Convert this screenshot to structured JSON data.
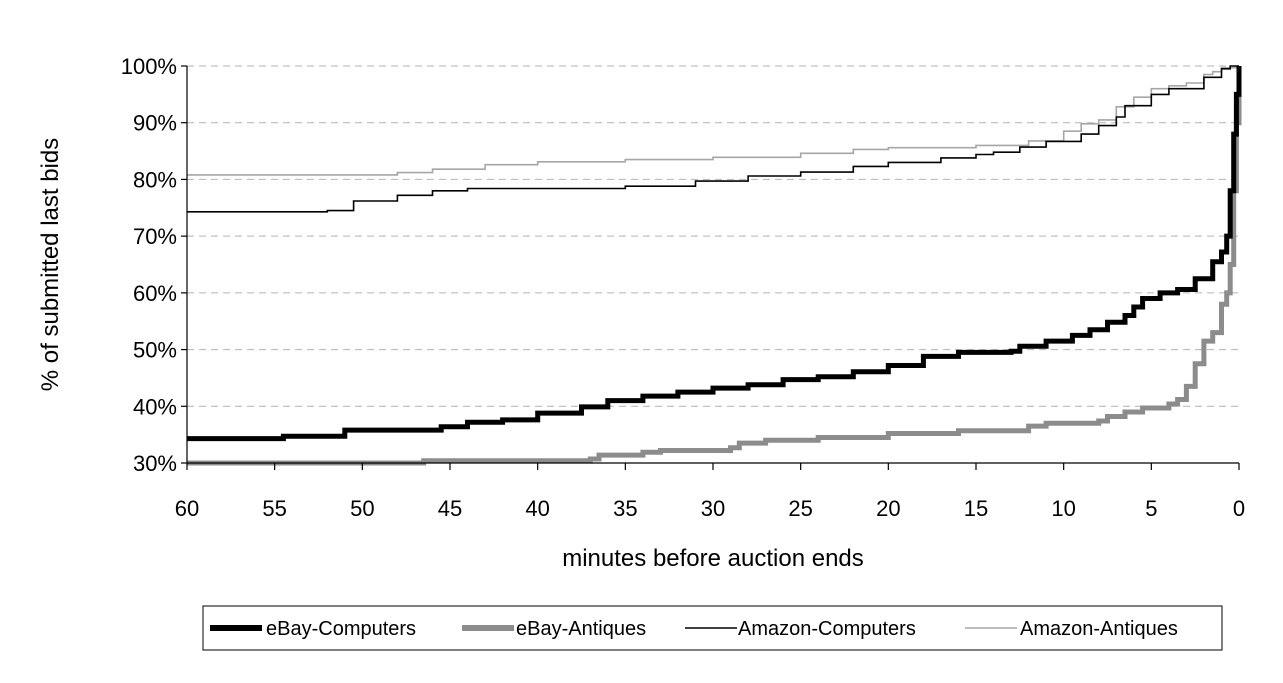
{
  "chart_data": {
    "type": "line",
    "xlabel": "minutes before auction ends",
    "ylabel": "% of submitted last bids",
    "xlim": [
      60,
      0
    ],
    "ylim": [
      0.3,
      1.0
    ],
    "x_ticks": [
      60,
      55,
      50,
      45,
      40,
      35,
      30,
      25,
      20,
      15,
      10,
      5,
      0
    ],
    "x_tick_labels": [
      "60",
      "55",
      "50",
      "45",
      "40",
      "35",
      "30",
      "25",
      "20",
      "15",
      "10",
      "5",
      "0"
    ],
    "y_ticks": [
      0.3,
      0.4,
      0.5,
      0.6,
      0.7,
      0.8,
      0.9,
      1.0
    ],
    "y_tick_labels": [
      "30%",
      "40%",
      "50%",
      "60%",
      "70%",
      "80%",
      "90%",
      "100%"
    ],
    "grid": "horizontal dashed",
    "legend_position": "bottom",
    "series": [
      {
        "name": "eBay-Computers",
        "color": "#000000",
        "style": "thick",
        "points": [
          [
            60,
            0.343
          ],
          [
            54.5,
            0.343
          ],
          [
            54.5,
            0.347
          ],
          [
            51,
            0.347
          ],
          [
            51,
            0.358
          ],
          [
            47,
            0.358
          ],
          [
            45.5,
            0.364
          ],
          [
            44,
            0.372
          ],
          [
            42,
            0.376
          ],
          [
            40,
            0.388
          ],
          [
            37.5,
            0.399
          ],
          [
            36,
            0.41
          ],
          [
            34,
            0.418
          ],
          [
            32,
            0.425
          ],
          [
            30,
            0.432
          ],
          [
            28,
            0.438
          ],
          [
            26,
            0.447
          ],
          [
            24,
            0.452
          ],
          [
            22,
            0.461
          ],
          [
            20,
            0.472
          ],
          [
            18,
            0.488
          ],
          [
            16,
            0.495
          ],
          [
            13,
            0.497
          ],
          [
            12.5,
            0.506
          ],
          [
            11,
            0.515
          ],
          [
            9.5,
            0.525
          ],
          [
            8.5,
            0.535
          ],
          [
            7.5,
            0.548
          ],
          [
            6.5,
            0.56
          ],
          [
            6,
            0.575
          ],
          [
            5.5,
            0.59
          ],
          [
            4.5,
            0.6
          ],
          [
            3.5,
            0.606
          ],
          [
            2.5,
            0.625
          ],
          [
            1.5,
            0.655
          ],
          [
            1,
            0.672
          ],
          [
            0.7,
            0.7
          ],
          [
            0.5,
            0.78
          ],
          [
            0.3,
            0.88
          ],
          [
            0.15,
            0.95
          ],
          [
            0,
            1.0
          ]
        ]
      },
      {
        "name": "eBay-Antiques",
        "color": "#8c8c8c",
        "style": "thick",
        "points": [
          [
            60,
            0.3
          ],
          [
            47,
            0.3
          ],
          [
            46.5,
            0.304
          ],
          [
            37,
            0.307
          ],
          [
            36.5,
            0.314
          ],
          [
            34,
            0.319
          ],
          [
            33,
            0.322
          ],
          [
            29,
            0.327
          ],
          [
            28.5,
            0.335
          ],
          [
            27,
            0.34
          ],
          [
            24,
            0.345
          ],
          [
            20,
            0.352
          ],
          [
            16,
            0.357
          ],
          [
            13,
            0.357
          ],
          [
            12,
            0.365
          ],
          [
            11,
            0.37
          ],
          [
            8,
            0.374
          ],
          [
            7.5,
            0.382
          ],
          [
            6.5,
            0.39
          ],
          [
            5.5,
            0.397
          ],
          [
            4,
            0.404
          ],
          [
            3.5,
            0.412
          ],
          [
            3,
            0.435
          ],
          [
            2.5,
            0.475
          ],
          [
            2,
            0.515
          ],
          [
            1.5,
            0.53
          ],
          [
            1,
            0.58
          ],
          [
            0.7,
            0.6
          ],
          [
            0.5,
            0.65
          ],
          [
            0.3,
            0.78
          ],
          [
            0.15,
            0.9
          ],
          [
            0,
            1.0
          ]
        ]
      },
      {
        "name": "Amazon-Computers",
        "color": "#000000",
        "style": "thin",
        "points": [
          [
            60,
            0.743
          ],
          [
            53,
            0.743
          ],
          [
            52,
            0.745
          ],
          [
            50.5,
            0.762
          ],
          [
            48,
            0.772
          ],
          [
            46,
            0.78
          ],
          [
            44,
            0.784
          ],
          [
            35,
            0.788
          ],
          [
            31,
            0.797
          ],
          [
            28,
            0.806
          ],
          [
            25,
            0.813
          ],
          [
            22,
            0.823
          ],
          [
            20,
            0.83
          ],
          [
            17,
            0.838
          ],
          [
            15,
            0.844
          ],
          [
            14,
            0.848
          ],
          [
            12.5,
            0.857
          ],
          [
            11,
            0.867
          ],
          [
            9,
            0.88
          ],
          [
            8,
            0.895
          ],
          [
            7,
            0.91
          ],
          [
            6.5,
            0.93
          ],
          [
            5,
            0.95
          ],
          [
            4,
            0.96
          ],
          [
            2,
            0.98
          ],
          [
            1,
            0.995
          ],
          [
            0.5,
            1.0
          ],
          [
            0,
            1.0
          ]
        ]
      },
      {
        "name": "Amazon-Antiques",
        "color": "#a6a6a6",
        "style": "thin",
        "points": [
          [
            60,
            0.808
          ],
          [
            49,
            0.808
          ],
          [
            48,
            0.812
          ],
          [
            46,
            0.818
          ],
          [
            43,
            0.826
          ],
          [
            40,
            0.831
          ],
          [
            35,
            0.835
          ],
          [
            30,
            0.839
          ],
          [
            25,
            0.846
          ],
          [
            22,
            0.853
          ],
          [
            20,
            0.856
          ],
          [
            15,
            0.86
          ],
          [
            12,
            0.868
          ],
          [
            10,
            0.885
          ],
          [
            9,
            0.898
          ],
          [
            8,
            0.905
          ],
          [
            7,
            0.928
          ],
          [
            6,
            0.945
          ],
          [
            5,
            0.96
          ],
          [
            4,
            0.965
          ],
          [
            3,
            0.97
          ],
          [
            2,
            0.985
          ],
          [
            1.5,
            0.99
          ],
          [
            1,
            0.997
          ],
          [
            0,
            1.0
          ]
        ]
      }
    ]
  }
}
